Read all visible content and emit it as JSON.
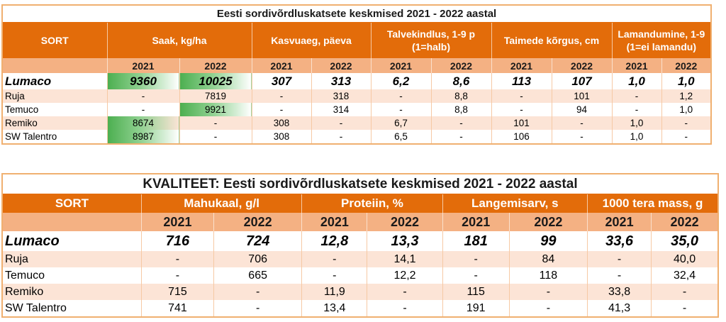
{
  "table1": {
    "title": "Eesti sordivõrdluskatsete keskmised 2021 - 2022 aastal",
    "headers": [
      "SORT",
      "Saak, kg/ha",
      "Kasvuaeg, päeva",
      "Talvekindlus, 1-9 p (1=halb)",
      "Taimede kõrgus, cm",
      "Lamandumine, 1-9 (1=ei lamandu)"
    ],
    "years": [
      "2021",
      "2022",
      "2021",
      "2022",
      "2021",
      "2022",
      "2021",
      "2022",
      "2021",
      "2022"
    ],
    "rows": [
      {
        "name": "Lumaco",
        "values": [
          "9360",
          "10025",
          "307",
          "313",
          "6,2",
          "8,6",
          "113",
          "107",
          "1,0",
          "1,0"
        ]
      },
      {
        "name": "Ruja",
        "values": [
          "-",
          "7819",
          "-",
          "318",
          "-",
          "8,8",
          "-",
          "101",
          "-",
          "1,2"
        ]
      },
      {
        "name": "Temuco",
        "values": [
          "-",
          "9921",
          "-",
          "314",
          "-",
          "8,8",
          "-",
          "94",
          "-",
          "1,0"
        ]
      },
      {
        "name": "Remiko",
        "values": [
          "8674",
          "-",
          "308",
          "-",
          "6,7",
          "-",
          "101",
          "-",
          "1,0",
          "-"
        ]
      },
      {
        "name": "SW Talentro",
        "values": [
          "8987",
          "-",
          "308",
          "-",
          "6,5",
          "-",
          "106",
          "-",
          "1,0",
          "-"
        ]
      }
    ],
    "highlight_color": "#4caf50"
  },
  "table2": {
    "title": "KVALITEET: Eesti sordivõrdluskatsete keskmised 2021 - 2022 aastal",
    "headers": [
      "SORT",
      "Mahukaal, g/l",
      "Proteiin, %",
      "Langemisarv, s",
      "1000 tera mass, g"
    ],
    "years": [
      "2021",
      "2022",
      "2021",
      "2022",
      "2021",
      "2022",
      "2021",
      "2022"
    ],
    "rows": [
      {
        "name": "Lumaco",
        "values": [
          "716",
          "724",
          "12,8",
          "13,3",
          "181",
          "99",
          "33,6",
          "35,0"
        ]
      },
      {
        "name": "Ruja",
        "values": [
          "-",
          "706",
          "-",
          "14,1",
          "-",
          "84",
          "-",
          "40,0"
        ]
      },
      {
        "name": "Temuco",
        "values": [
          "-",
          "665",
          "-",
          "12,2",
          "-",
          "118",
          "-",
          "32,4"
        ]
      },
      {
        "name": "Remiko",
        "values": [
          "715",
          "-",
          "11,9",
          "-",
          "115",
          "-",
          "33,8",
          "-"
        ]
      },
      {
        "name": "SW Talentro",
        "values": [
          "741",
          "-",
          "13,4",
          "-",
          "191",
          "-",
          "41,3",
          "-"
        ]
      }
    ]
  },
  "colors": {
    "header_orange": "#e36c0a",
    "year_row": "#f4b183",
    "alt_row": "#fce4d6"
  }
}
